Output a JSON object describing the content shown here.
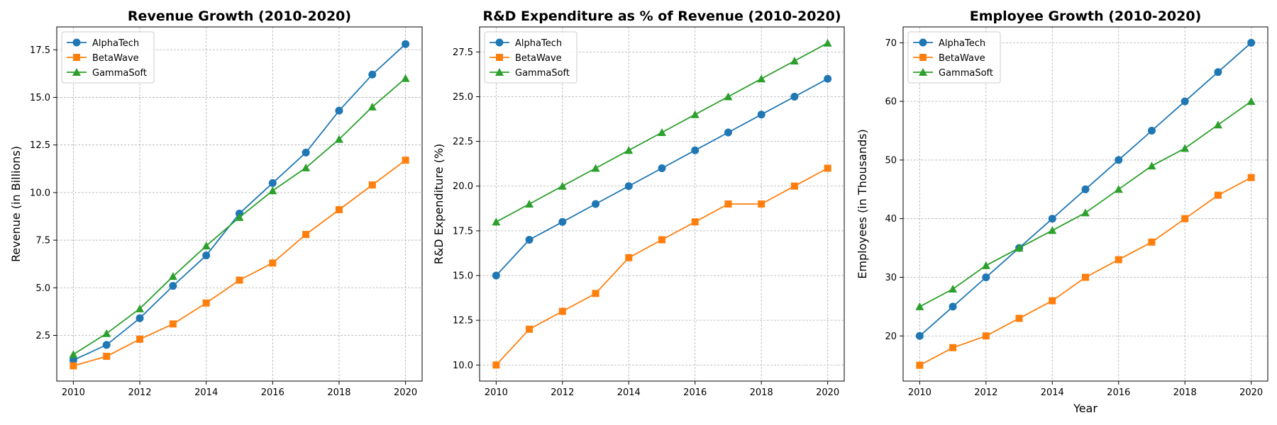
{
  "chart_data": [
    {
      "type": "line",
      "title": "Revenue Growth (2010-2020)",
      "xlabel": "",
      "ylabel": "Revenue (in Billions)",
      "x": [
        2010,
        2011,
        2012,
        2013,
        2014,
        2015,
        2016,
        2017,
        2018,
        2019,
        2020
      ],
      "xlim": [
        2009.5,
        2020.5
      ],
      "xticks": [
        2010,
        2012,
        2014,
        2016,
        2018,
        2020
      ],
      "ylim": [
        0.1,
        18.7
      ],
      "yticks": [
        2.5,
        5.0,
        7.5,
        10.0,
        12.5,
        15.0,
        17.5
      ],
      "ytick_decimals": 1,
      "grid": true,
      "legend_position": "top-left",
      "series": [
        {
          "name": "AlphaTech",
          "color": "#1f77b4",
          "marker": "circle",
          "values": [
            1.2,
            2.0,
            3.4,
            5.1,
            6.7,
            8.9,
            10.5,
            12.1,
            14.3,
            16.2,
            17.8
          ]
        },
        {
          "name": "BetaWave",
          "color": "#ff7f0e",
          "marker": "square",
          "values": [
            0.9,
            1.4,
            2.3,
            3.1,
            4.2,
            5.4,
            6.3,
            7.8,
            9.1,
            10.4,
            11.7
          ]
        },
        {
          "name": "GammaSoft",
          "color": "#2ca02c",
          "marker": "triangle",
          "values": [
            1.5,
            2.6,
            3.9,
            5.6,
            7.2,
            8.7,
            10.1,
            11.3,
            12.8,
            14.5,
            16.0
          ]
        }
      ]
    },
    {
      "type": "line",
      "title": "R&D Expenditure as % of Revenue (2010-2020)",
      "xlabel": "",
      "ylabel": "R&D Expenditure (%)",
      "x": [
        2010,
        2011,
        2012,
        2013,
        2014,
        2015,
        2016,
        2017,
        2018,
        2019,
        2020
      ],
      "xlim": [
        2009.5,
        2020.5
      ],
      "xticks": [
        2010,
        2012,
        2014,
        2016,
        2018,
        2020
      ],
      "ylim": [
        9.1,
        28.9
      ],
      "yticks": [
        10.0,
        12.5,
        15.0,
        17.5,
        20.0,
        22.5,
        25.0,
        27.5
      ],
      "ytick_decimals": 1,
      "grid": true,
      "legend_position": "top-left",
      "series": [
        {
          "name": "AlphaTech",
          "color": "#1f77b4",
          "marker": "circle",
          "values": [
            15,
            17,
            18,
            19,
            20,
            21,
            22,
            23,
            24,
            25,
            26
          ]
        },
        {
          "name": "BetaWave",
          "color": "#ff7f0e",
          "marker": "square",
          "values": [
            10,
            12,
            13,
            14,
            16,
            17,
            18,
            19,
            19,
            20,
            21
          ]
        },
        {
          "name": "GammaSoft",
          "color": "#2ca02c",
          "marker": "triangle",
          "values": [
            18,
            19,
            20,
            21,
            22,
            23,
            24,
            25,
            26,
            27,
            28
          ]
        }
      ]
    },
    {
      "type": "line",
      "title": "Employee Growth (2010-2020)",
      "xlabel": "Year",
      "ylabel": "Employees (in Thousands)",
      "x": [
        2010,
        2011,
        2012,
        2013,
        2014,
        2015,
        2016,
        2017,
        2018,
        2019,
        2020
      ],
      "xlim": [
        2009.5,
        2020.5
      ],
      "xticks": [
        2010,
        2012,
        2014,
        2016,
        2018,
        2020
      ],
      "ylim": [
        12.3,
        72.7
      ],
      "yticks": [
        20,
        30,
        40,
        50,
        60,
        70
      ],
      "ytick_decimals": 0,
      "grid": true,
      "legend_position": "top-left",
      "series": [
        {
          "name": "AlphaTech",
          "color": "#1f77b4",
          "marker": "circle",
          "values": [
            20,
            25,
            30,
            35,
            40,
            45,
            50,
            55,
            60,
            65,
            70
          ]
        },
        {
          "name": "BetaWave",
          "color": "#ff7f0e",
          "marker": "square",
          "values": [
            15,
            18,
            20,
            23,
            26,
            30,
            33,
            36,
            40,
            44,
            47
          ]
        },
        {
          "name": "GammaSoft",
          "color": "#2ca02c",
          "marker": "triangle",
          "values": [
            25,
            28,
            32,
            35,
            38,
            41,
            45,
            49,
            52,
            56,
            60
          ]
        }
      ]
    }
  ]
}
